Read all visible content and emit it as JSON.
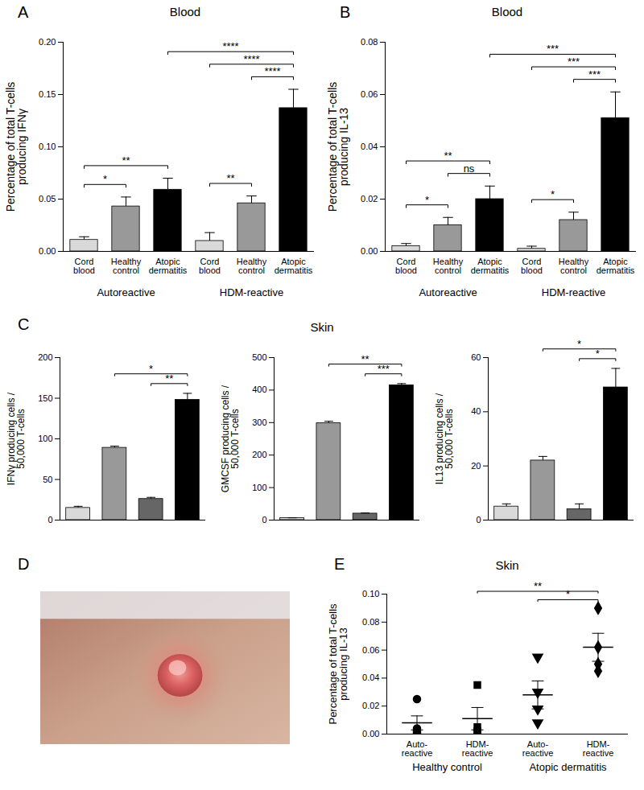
{
  "chart_data": [
    {
      "panel": "A",
      "type": "bar",
      "title": "Blood",
      "y_label": "Percentage of total T-cells producing IFNγ",
      "categories": [
        "Cord blood",
        "Healthy control",
        "Atopic dermatitis",
        "Cord blood",
        "Healthy control",
        "Atopic dermatitis"
      ],
      "group_labels": [
        "Autoreactive",
        "HDM-reactive"
      ],
      "values": [
        0.011,
        0.043,
        0.059,
        0.01,
        0.046,
        0.137
      ],
      "errors": [
        0.003,
        0.009,
        0.011,
        0.008,
        0.007,
        0.018
      ],
      "colors": [
        "#d9d9d9",
        "#999999",
        "#000000",
        "#d9d9d9",
        "#999999",
        "#000000"
      ],
      "ylim": [
        0,
        0.2
      ],
      "yticks": [
        {
          "value": 0,
          "label": "0.00"
        },
        {
          "value": 0.05,
          "label": "0.05"
        },
        {
          "value": 0.1,
          "label": "0.10"
        },
        {
          "value": 0.15,
          "label": "0.15"
        },
        {
          "value": 0.2,
          "label": "0.20"
        }
      ],
      "comparisons": [
        {
          "between": [
            0,
            1
          ],
          "label": "*"
        },
        {
          "between": [
            0,
            2
          ],
          "label": "**"
        },
        {
          "between": [
            3,
            4
          ],
          "label": "**"
        },
        {
          "between": [
            4,
            5
          ],
          "label": "****"
        },
        {
          "between": [
            3,
            5
          ],
          "label": "****"
        },
        {
          "between": [
            2,
            5
          ],
          "label": "****"
        }
      ]
    },
    {
      "panel": "B",
      "type": "bar",
      "title": "Blood",
      "y_label": "Percentage of total T-cells producing IL-13",
      "categories": [
        "Cord blood",
        "Healthy control",
        "Atopic dermatitis",
        "Cord blood",
        "Healthy control",
        "Atopic dermatitis"
      ],
      "group_labels": [
        "Autoreactive",
        "HDM-reactive"
      ],
      "values": [
        0.002,
        0.01,
        0.02,
        0.001,
        0.012,
        0.051
      ],
      "errors": [
        0.001,
        0.003,
        0.005,
        0.001,
        0.003,
        0.01
      ],
      "colors": [
        "#d9d9d9",
        "#999999",
        "#000000",
        "#d9d9d9",
        "#999999",
        "#000000"
      ],
      "ylim": [
        0,
        0.08
      ],
      "yticks": [
        {
          "value": 0,
          "label": "0.00"
        },
        {
          "value": 0.02,
          "label": "0.02"
        },
        {
          "value": 0.04,
          "label": "0.04"
        },
        {
          "value": 0.06,
          "label": "0.06"
        },
        {
          "value": 0.08,
          "label": "0.08"
        }
      ],
      "comparisons": [
        {
          "between": [
            0,
            1
          ],
          "label": "*"
        },
        {
          "between": [
            1,
            2
          ],
          "label": "ns"
        },
        {
          "between": [
            0,
            2
          ],
          "label": "**"
        },
        {
          "between": [
            3,
            4
          ],
          "label": "*"
        },
        {
          "between": [
            4,
            5
          ],
          "label": "***"
        },
        {
          "between": [
            3,
            5
          ],
          "label": "***"
        },
        {
          "between": [
            2,
            5
          ],
          "label": "***"
        }
      ]
    },
    {
      "panel": "C",
      "type": "bar",
      "title": "Skin",
      "charts": [
        {
          "type": "bar",
          "y_label": "IFNγ producing cells / 50,000 T-cells",
          "categories": [
            null,
            null,
            null,
            null
          ],
          "values": [
            15,
            89,
            26,
            148
          ],
          "errors": [
            2,
            2,
            2,
            8
          ],
          "colors": [
            "#d9d9d9",
            "#999999",
            "#666666",
            "#000000"
          ],
          "ylim": [
            0,
            200
          ],
          "yticks": [
            0,
            50,
            100,
            150,
            200
          ],
          "comparisons": [
            {
              "between": [
                2,
                3
              ],
              "label": "**"
            },
            {
              "between": [
                1,
                3
              ],
              "label": "*"
            }
          ]
        },
        {
          "type": "bar",
          "y_label": "GMCSF producing cells / 50,000 T-cells",
          "categories": [
            null,
            null,
            null,
            null
          ],
          "values": [
            6,
            298,
            20,
            415
          ],
          "errors": [
            1,
            6,
            2,
            5
          ],
          "colors": [
            "#d9d9d9",
            "#999999",
            "#666666",
            "#000000"
          ],
          "ylim": [
            0,
            500
          ],
          "yticks": [
            0,
            100,
            200,
            300,
            400,
            500
          ],
          "comparisons": [
            {
              "between": [
                2,
                3
              ],
              "label": "***"
            },
            {
              "between": [
                1,
                3
              ],
              "label": "**"
            }
          ]
        },
        {
          "type": "bar",
          "y_label": "IL13 producing cells / 50,000 T-cells",
          "categories": [
            null,
            null,
            null,
            null
          ],
          "values": [
            5,
            22,
            4,
            49
          ],
          "errors": [
            1,
            1.5,
            2,
            7
          ],
          "colors": [
            "#d9d9d9",
            "#999999",
            "#666666",
            "#000000"
          ],
          "ylim": [
            0,
            60
          ],
          "yticks": [
            0,
            20,
            40,
            60
          ],
          "comparisons": [
            {
              "between": [
                2,
                3
              ],
              "label": "*"
            },
            {
              "between": [
                1,
                3
              ],
              "label": "*"
            }
          ]
        }
      ]
    },
    {
      "panel": "D",
      "type": "image"
    },
    {
      "panel": "E",
      "type": "scatter",
      "title": "Skin",
      "y_label": "Percentage of total T-cells producing IL-13",
      "categories": [
        "Auto-reactive",
        "HDM-reactive",
        "Auto-reactive",
        "HDM-reactive"
      ],
      "group_labels": [
        "Healthy control",
        "Atopic dermatitis"
      ],
      "points": [
        [
          0.025,
          0.004,
          0.002,
          0.001
        ],
        [
          0.035,
          0.005,
          0.002,
          0.001
        ],
        [
          0.055,
          0.03,
          0.018,
          0.008
        ],
        [
          0.09,
          0.062,
          0.05,
          0.045
        ]
      ],
      "means": [
        0.008,
        0.011,
        0.028,
        0.062
      ],
      "errors": [
        0.005,
        0.008,
        0.01,
        0.01
      ],
      "markers": [
        "circle",
        "square",
        "triangle-down",
        "diamond"
      ],
      "color": "#000000",
      "ylim": [
        0,
        0.1
      ],
      "yticks": [
        {
          "value": 0,
          "label": "0.00"
        },
        {
          "value": 0.02,
          "label": "0.02"
        },
        {
          "value": 0.04,
          "label": "0.04"
        },
        {
          "value": 0.06,
          "label": "0.06"
        },
        {
          "value": 0.08,
          "label": "0.08"
        },
        {
          "value": 0.1,
          "label": "0.10"
        }
      ],
      "comparisons": [
        {
          "between": [
            2,
            3
          ],
          "label": "*"
        },
        {
          "between": [
            1,
            3
          ],
          "label": "**"
        }
      ]
    }
  ]
}
